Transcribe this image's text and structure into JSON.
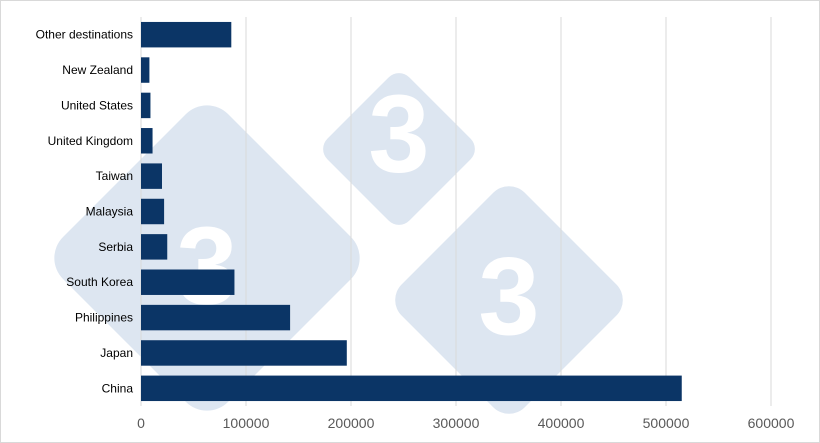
{
  "chart_data": {
    "type": "bar",
    "orientation": "horizontal",
    "categories": [
      "China",
      "Japan",
      "Philippines",
      "South Korea",
      "Serbia",
      "Malaysia",
      "Taiwan",
      "United Kingdom",
      "United States",
      "New Zealand",
      "Other destinations"
    ],
    "values": [
      515000,
      196000,
      142000,
      89000,
      25000,
      22000,
      20000,
      11000,
      9000,
      8000,
      86000
    ],
    "title": "",
    "xlabel": "",
    "ylabel": "",
    "xlim": [
      0,
      600000
    ],
    "xticks": [
      "0",
      "100000",
      "200000",
      "300000",
      "400000",
      "500000",
      "600000"
    ],
    "grid": "vertical",
    "legend": "none",
    "bar_color": "#0b3566",
    "grid_color": "#d9d9d9"
  },
  "watermark": {
    "text": "3",
    "color": "#dde6f1"
  }
}
